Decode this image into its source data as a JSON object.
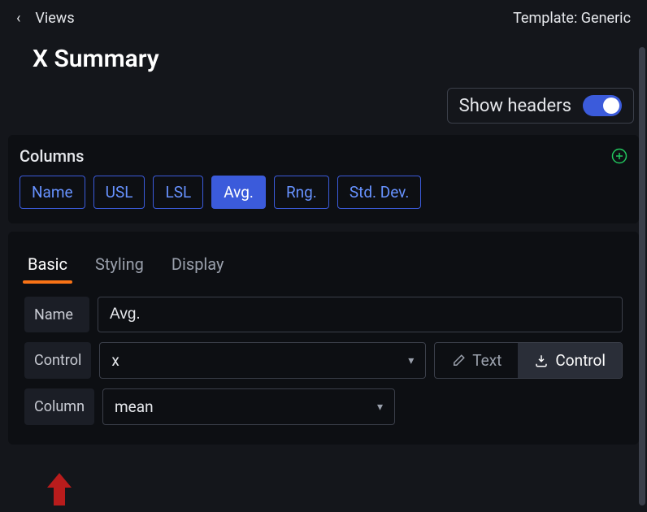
{
  "colors": {
    "accent_blue": "#3b5bdb",
    "accent_orange": "#f97316",
    "toggle_on_bg": "#3b5bdb",
    "add_icon": "#22c55e",
    "arrow_annotation": "#b91c1c"
  },
  "topbar": {
    "back_glyph": "‹",
    "views": "Views",
    "template": "Template: Generic"
  },
  "page_title": "X Summary",
  "headers_toggle": {
    "label": "Show headers",
    "on": true
  },
  "columns": {
    "title": "Columns",
    "items": [
      {
        "label": "Name",
        "active": false
      },
      {
        "label": "USL",
        "active": false
      },
      {
        "label": "LSL",
        "active": false
      },
      {
        "label": "Avg.",
        "active": true
      },
      {
        "label": "Rng.",
        "active": false
      },
      {
        "label": "Std. Dev.",
        "active": false
      }
    ]
  },
  "tabs": [
    {
      "label": "Basic",
      "active": true
    },
    {
      "label": "Styling",
      "active": false
    },
    {
      "label": "Display",
      "active": false
    }
  ],
  "form": {
    "name": {
      "label": "Name",
      "value": "Avg."
    },
    "control": {
      "label": "Control",
      "value": "x"
    },
    "column": {
      "label": "Column",
      "value": "mean"
    },
    "mode": {
      "text": "Text",
      "control": "Control",
      "active": "control"
    }
  }
}
